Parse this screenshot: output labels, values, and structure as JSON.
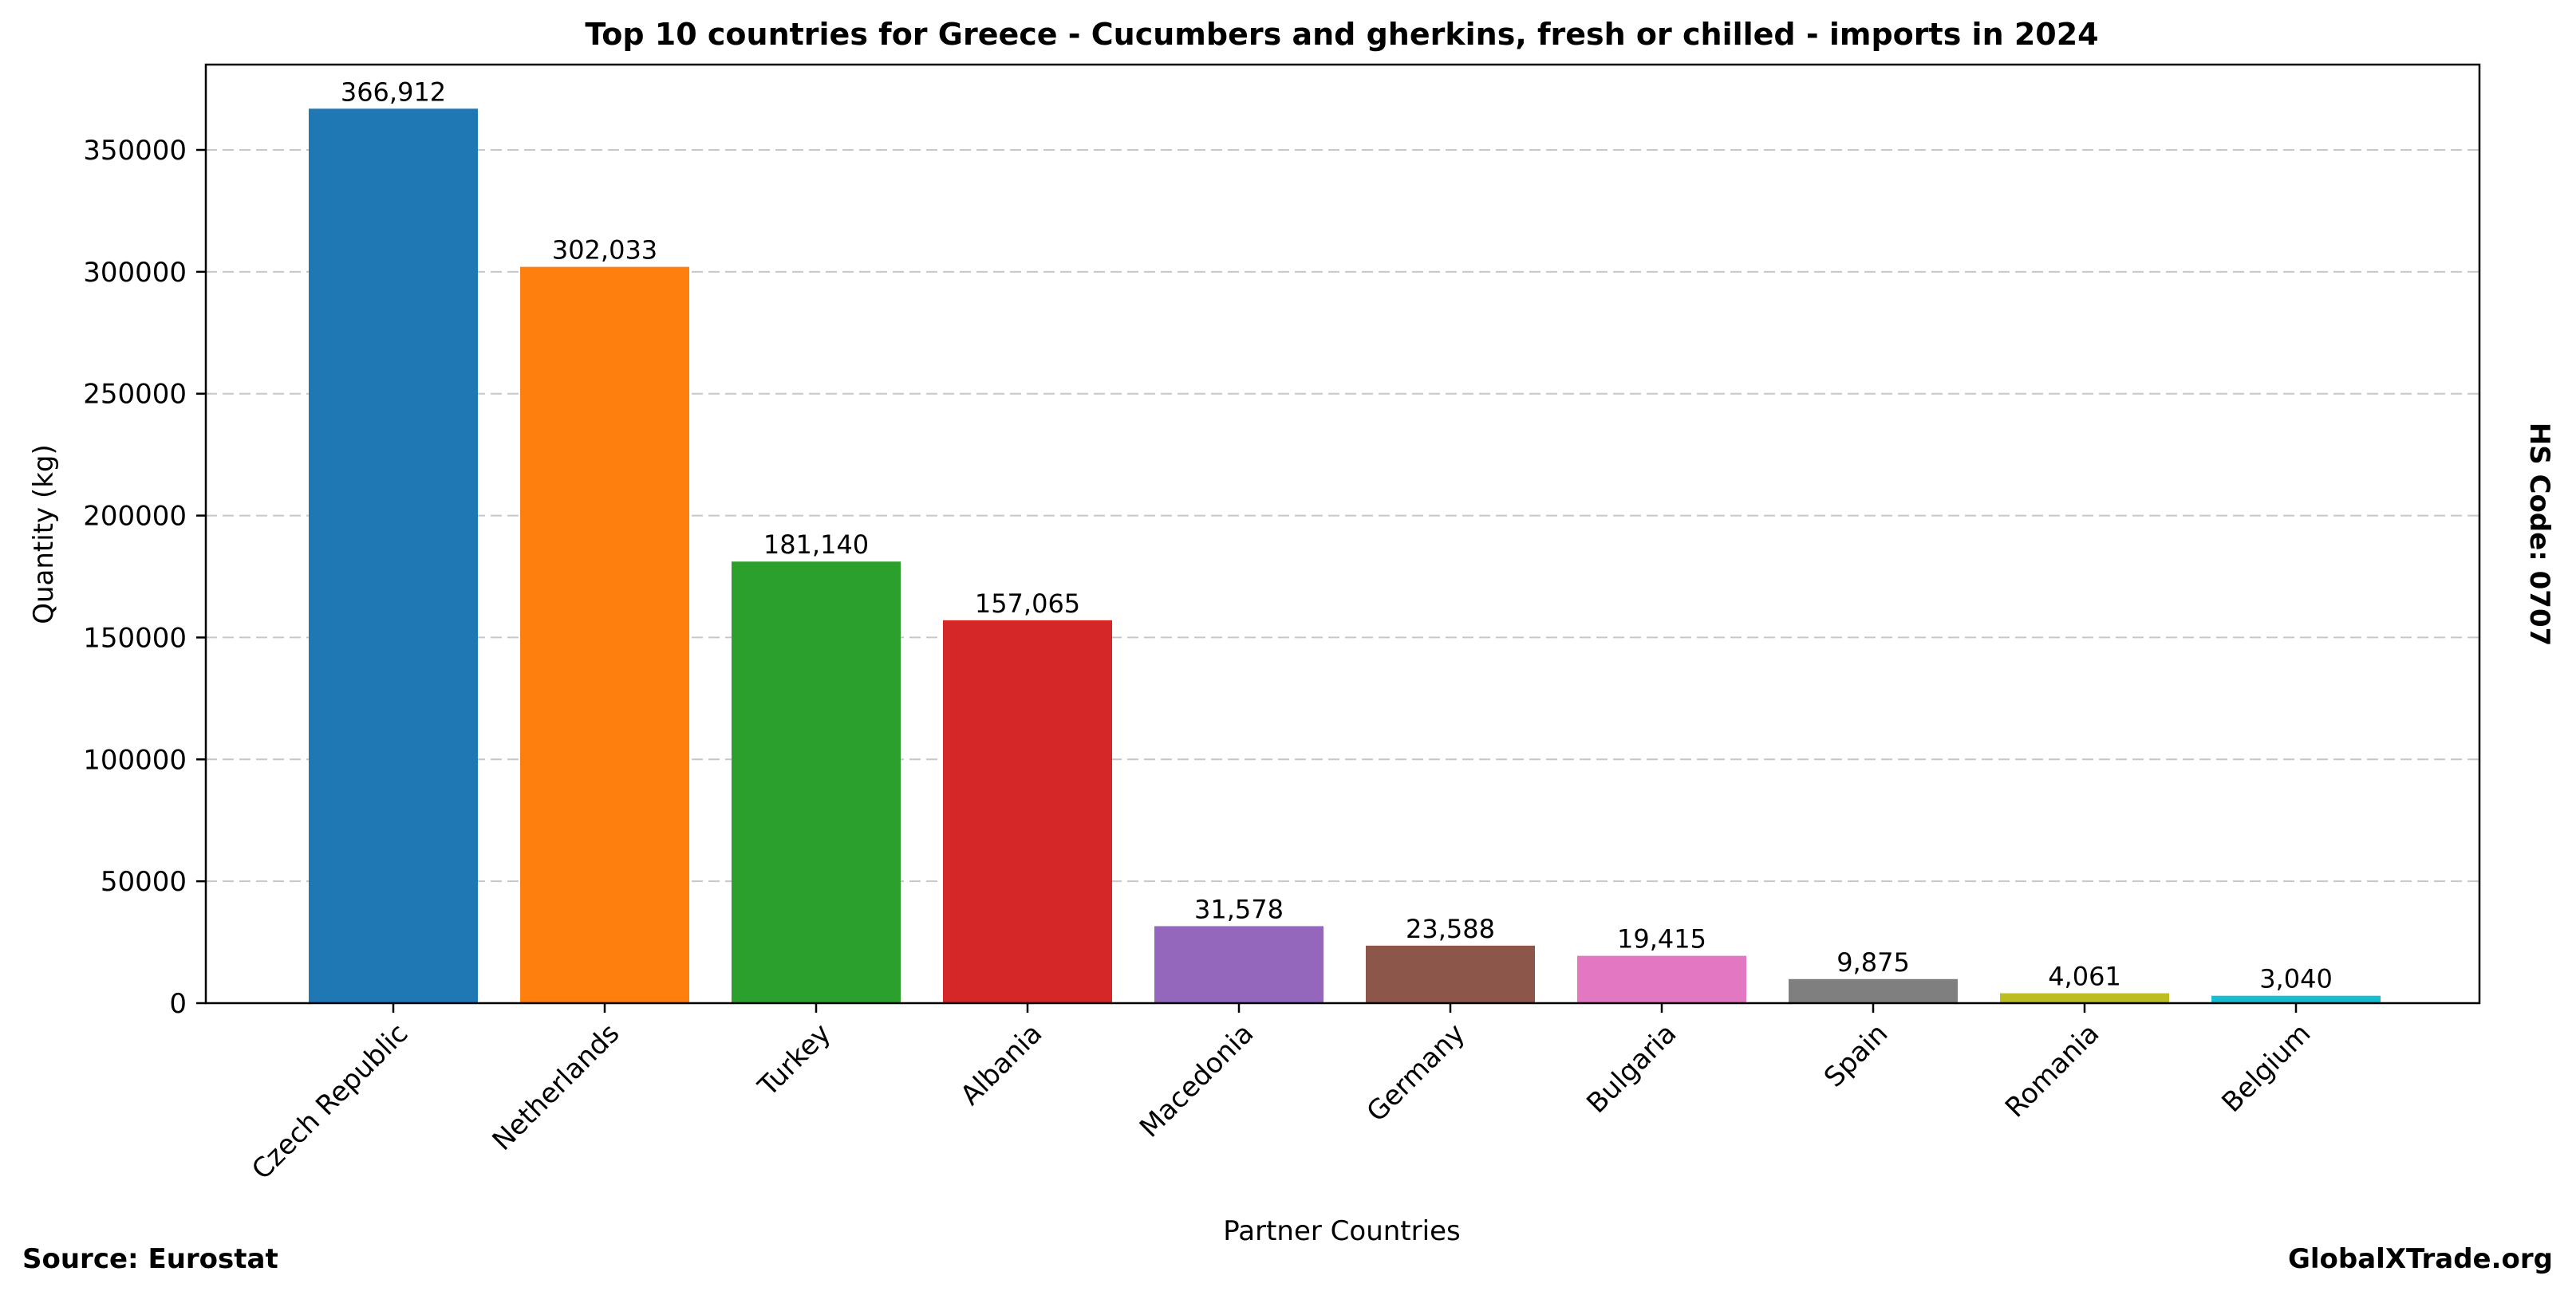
{
  "chart_data": {
    "type": "bar",
    "title": "Top 10 countries for Greece - Cucumbers and gherkins, fresh or chilled - imports in 2024",
    "xlabel": "Partner Countries",
    "ylabel": "Quantity (kg)",
    "categories": [
      "Czech Republic",
      "Netherlands",
      "Turkey",
      "Albania",
      "Macedonia",
      "Germany",
      "Bulgaria",
      "Spain",
      "Romania",
      "Belgium"
    ],
    "values": [
      366912,
      302033,
      181140,
      157065,
      31578,
      23588,
      19415,
      9875,
      4061,
      3040
    ],
    "value_labels": [
      "366,912",
      "302,033",
      "181,140",
      "157,065",
      "31,578",
      "23,588",
      "19,415",
      "9,875",
      "4,061",
      "3,040"
    ],
    "colors": [
      "#1f77b4",
      "#ff7f0e",
      "#2ca02c",
      "#d62728",
      "#9467bd",
      "#8c564b",
      "#e377c2",
      "#7f7f7f",
      "#bcbd22",
      "#17becf"
    ],
    "ylim": [
      0,
      385000
    ],
    "yticks": [
      0,
      50000,
      100000,
      150000,
      200000,
      250000,
      300000,
      350000
    ],
    "ytick_labels": [
      "0",
      "50000",
      "100000",
      "150000",
      "200000",
      "250000",
      "300000",
      "350000"
    ],
    "grid": "horizontal dashed",
    "legend": "none"
  },
  "annotations": {
    "hs_code": "HS Code: 0707",
    "source": "Source: Eurostat",
    "brand": "GlobalXTrade.org"
  }
}
